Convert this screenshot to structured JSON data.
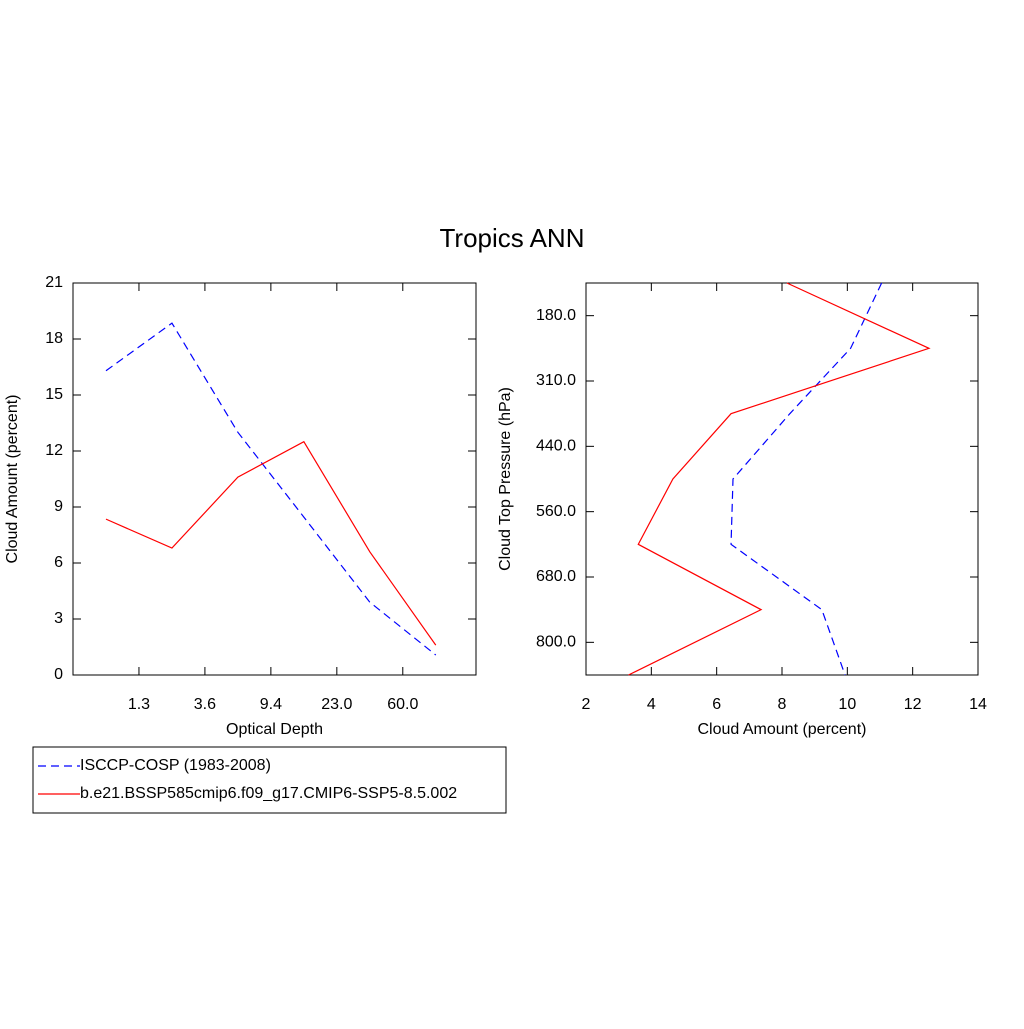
{
  "title": "Tropics ANN",
  "chart_data": [
    {
      "type": "line",
      "xlabel": "Optical Depth",
      "ylabel": "Cloud Amount (percent)",
      "x": [
        0,
        1,
        2,
        3,
        4,
        5
      ],
      "xlim": [
        -0.5,
        5.61
      ],
      "xticks": [
        {
          "value": 0.5,
          "label": "1.3"
        },
        {
          "value": 1.5,
          "label": "3.6"
        },
        {
          "value": 2.5,
          "label": "9.4"
        },
        {
          "value": 3.5,
          "label": "23.0"
        },
        {
          "value": 4.5,
          "label": "60.0"
        }
      ],
      "ylim": [
        0,
        21
      ],
      "yticks": [
        0,
        3,
        6,
        9,
        12,
        15,
        18,
        21
      ],
      "series": [
        {
          "name": "ISCCP-COSP (1983-2008)",
          "color": "#0000ff",
          "dashed": true,
          "values": [
            16.3,
            18.85,
            13.0,
            8.46,
            3.9,
            1.07
          ]
        },
        {
          "name": "b.e21.BSSP585cmip6.f09_g17.CMIP6-SSP5-8.5.002",
          "color": "#ff0000",
          "dashed": false,
          "values": [
            8.35,
            6.8,
            10.6,
            12.5,
            6.6,
            1.6
          ]
        }
      ]
    },
    {
      "type": "line",
      "orientation": "horizontal",
      "xlabel": "Cloud Amount (percent)",
      "ylabel": "Cloud Top Pressure (hPa)",
      "y": [
        0,
        1,
        2,
        3,
        4,
        5,
        6
      ],
      "ylim": [
        6,
        0
      ],
      "yticks": [
        {
          "value": 0.5,
          "label": "180.0"
        },
        {
          "value": 1.5,
          "label": "310.0"
        },
        {
          "value": 2.5,
          "label": "440.0"
        },
        {
          "value": 3.5,
          "label": "560.0"
        },
        {
          "value": 4.5,
          "label": "680.0"
        },
        {
          "value": 5.5,
          "label": "800.0"
        }
      ],
      "xlim": [
        2,
        14
      ],
      "xticks": [
        2,
        4,
        6,
        8,
        10,
        12,
        14
      ],
      "series": [
        {
          "color": "#0000ff",
          "dashed": true,
          "values": [
            11.05,
            10.1,
            8.24,
            6.5,
            6.44,
            9.22,
            9.93
          ]
        },
        {
          "color": "#ff0000",
          "dashed": false,
          "values": [
            8.15,
            12.5,
            6.44,
            4.66,
            3.6,
            7.36,
            3.3
          ]
        }
      ]
    }
  ]
}
